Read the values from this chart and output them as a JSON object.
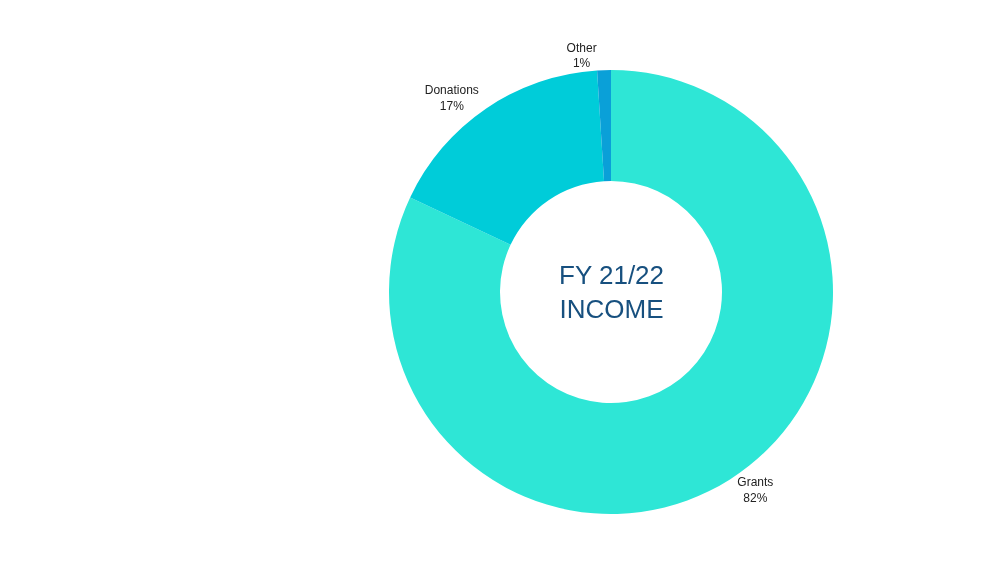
{
  "chart_data": {
    "type": "donut",
    "title": "FY 21/22\nINCOME",
    "categories": [
      "Grants",
      "Donations",
      "Other"
    ],
    "values": [
      82,
      17,
      1
    ],
    "value_labels": [
      "82%",
      "17%",
      "1%"
    ],
    "colors": [
      "#2ee6d6",
      "#00ccd9",
      "#0aa0d8"
    ],
    "legend": false
  }
}
